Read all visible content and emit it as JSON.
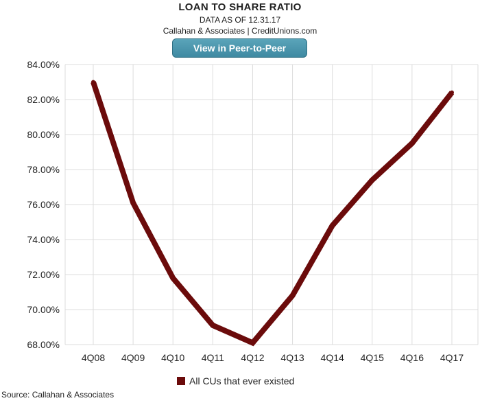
{
  "header": {
    "title": "LOAN TO SHARE RATIO",
    "subtitle": "DATA AS OF 12.31.17",
    "byline": "Callahan & Associates | CreditUnions.com",
    "button_label": "View in Peer-to-Peer"
  },
  "footer": {
    "source": "Source: Callahan & Associates"
  },
  "colors": {
    "series": "#6b0b0b",
    "grid": "#dcdcdc",
    "button": "#4a95ab"
  },
  "chart_data": {
    "type": "line",
    "categories": [
      "4Q08",
      "4Q09",
      "4Q10",
      "4Q11",
      "4Q12",
      "4Q13",
      "4Q14",
      "4Q15",
      "4Q16",
      "4Q17"
    ],
    "series": [
      {
        "name": "All CUs that ever existed",
        "values": [
          83.0,
          76.1,
          71.8,
          69.1,
          68.1,
          70.8,
          74.8,
          77.4,
          79.5,
          82.4
        ]
      }
    ],
    "yticks": [
      "84.00%",
      "82.00%",
      "80.00%",
      "78.00%",
      "76.00%",
      "74.00%",
      "72.00%",
      "70.00%",
      "68.00%"
    ],
    "ylim": [
      68,
      84
    ],
    "grid": true,
    "legend_position": "bottom"
  }
}
